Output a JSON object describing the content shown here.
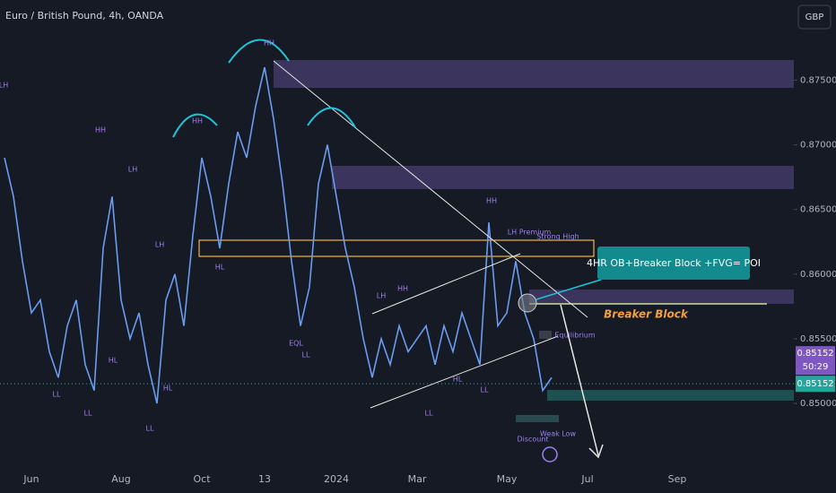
{
  "header": {
    "title": "Euro / British Pound, 4h, OANDA",
    "currency": "GBP"
  },
  "chart_data": {
    "type": "line",
    "color": "#6a9cf0",
    "categories": [
      null,
      null,
      null,
      "Jun",
      null,
      null,
      null,
      null,
      null,
      null,
      null,
      null,
      null,
      "Aug",
      null,
      null,
      null,
      null,
      null,
      null,
      null,
      null,
      "Oct",
      null,
      null,
      null,
      null,
      null,
      null,
      "13",
      null,
      null,
      null,
      null,
      null,
      null,
      null,
      "2024",
      null,
      null,
      null,
      null,
      null,
      null,
      null,
      null,
      "Mar",
      null,
      null,
      null,
      null,
      null,
      null,
      null,
      null,
      null,
      "May",
      null,
      null,
      null,
      null,
      null,
      null,
      null,
      null,
      "Jul",
      null,
      null,
      null,
      null,
      null,
      null,
      null,
      null,
      null,
      "Sep",
      null,
      null,
      null,
      null,
      null,
      null,
      null,
      null,
      null,
      null,
      null,
      null
    ],
    "values": [
      0.869,
      0.866,
      0.861,
      0.857,
      0.858,
      0.854,
      0.852,
      0.856,
      0.858,
      0.853,
      0.851,
      0.862,
      0.866,
      0.858,
      0.855,
      0.857,
      0.853,
      0.85,
      0.858,
      0.86,
      0.856,
      0.863,
      0.869,
      0.866,
      0.862,
      0.867,
      0.871,
      0.869,
      0.873,
      0.876,
      0.872,
      0.867,
      0.861,
      0.856,
      0.859,
      0.867,
      0.87,
      0.866,
      0.862,
      0.859,
      0.855,
      0.852,
      0.855,
      0.853,
      0.856,
      0.854,
      0.855,
      0.856,
      0.853,
      0.856,
      0.854,
      0.857,
      0.855,
      0.853,
      0.864,
      0.856,
      0.857,
      0.861,
      0.857,
      0.855,
      0.851,
      0.852,
      null,
      null,
      null,
      null,
      null,
      null,
      null,
      null,
      null,
      null,
      null,
      null,
      null,
      null,
      null,
      null,
      null,
      null,
      null,
      null,
      null,
      null,
      null,
      null,
      null,
      null
    ],
    "ylim": [
      0.8455,
      0.8812
    ],
    "yticks": [
      {
        "value": 0.85,
        "label": "0.85000"
      },
      {
        "value": 0.855,
        "label": "0.85500"
      },
      {
        "value": 0.86,
        "label": "0.86000"
      },
      {
        "value": 0.865,
        "label": "0.86500"
      },
      {
        "value": 0.87,
        "label": "0.87000"
      },
      {
        "value": 0.875,
        "label": "0.87500"
      }
    ],
    "last_price": 0.85152,
    "countdown": "50:29",
    "callout": "4HR OB+Breaker Block +FVG= POI",
    "zone_label": "Breaker Block",
    "annotations": [
      "HH",
      "HH",
      "LH",
      "HH",
      "LH",
      "LH",
      "HL",
      "LL",
      "LL",
      "LL",
      "HL",
      "HL",
      "LH",
      "HH",
      "HH",
      "HL",
      "LL",
      "LL",
      "LL",
      "EQL",
      "LH Premium",
      "Strong High",
      "Equilibrium",
      "Discount",
      "Weak Low"
    ]
  }
}
